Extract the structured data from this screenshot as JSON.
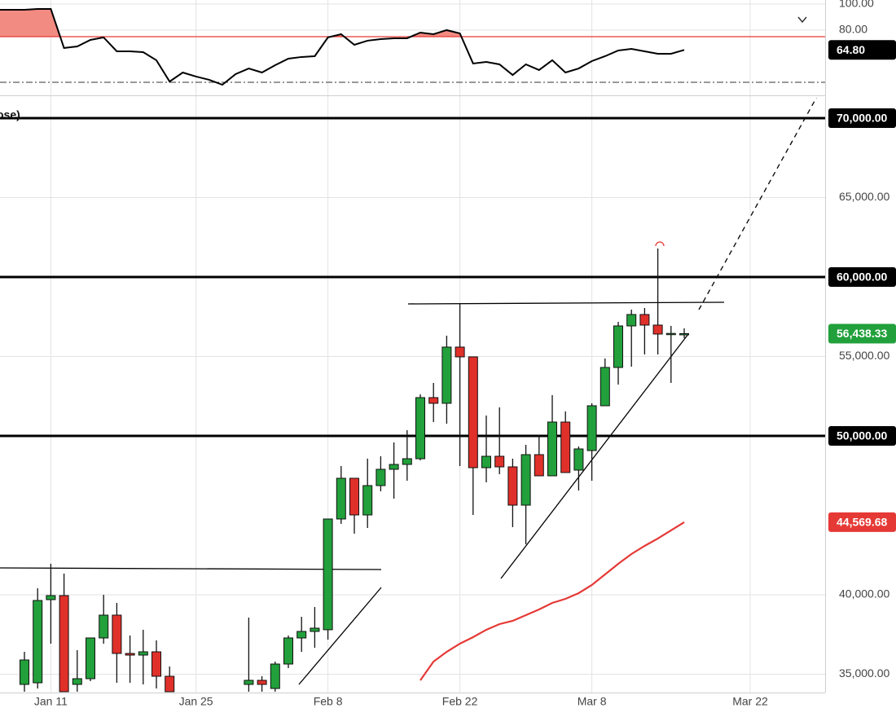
{
  "chart_data": [
    {
      "type": "line",
      "values": [
        95.6,
        96.2,
        96.2,
        66.3,
        67.5,
        72.5,
        74.4,
        63.75,
        63.75,
        63.1,
        56.9,
        40.6,
        47.5,
        44.4,
        41.9,
        38.1,
        46.25,
        50.6,
        47.5,
        53.1,
        58.1,
        59.4,
        60,
        74.4,
        76.9,
        68.75,
        71.9,
        73.1,
        73.75,
        73.75,
        78.1,
        76.9,
        80,
        77.5,
        54.4,
        55.6,
        53.75,
        45.6,
        53.75,
        49.4,
        56.9,
        47.5,
        50.6,
        56.25,
        60,
        64.4,
        65.6,
        63.75,
        61.9,
        61.9,
        64.8,
        null,
        null,
        null,
        null,
        null,
        null,
        null,
        null,
        null,
        null
      ],
      "color": "#000000",
      "ylim": [
        31.25,
        103.1
      ],
      "yticks": [
        {
          "value": 100,
          "label": "100.00"
        },
        {
          "value": 80,
          "label": "80.00"
        }
      ],
      "upper_band": 75,
      "lower_band": 40,
      "band_color": "#e53935",
      "fill_color": "#f28b82",
      "last_label": {
        "value": 64.8,
        "label": "64.80"
      }
    },
    {
      "type": "candlestick",
      "legend_text": "ose)",
      "categories": [
        null,
        null,
        "Jan 11",
        null,
        null,
        null,
        null,
        null,
        null,
        null,
        null,
        null,
        null,
        "Jan 25",
        null,
        null,
        null,
        null,
        null,
        null,
        null,
        null,
        null,
        "Feb 8",
        null,
        null,
        null,
        null,
        null,
        null,
        null,
        null,
        null,
        "Feb 22",
        null,
        null,
        null,
        null,
        null,
        null,
        null,
        null,
        null,
        "Mar 8",
        null,
        null,
        null,
        null,
        null,
        null,
        null,
        null,
        null,
        null,
        null,
        "Mar 22",
        null,
        null,
        null,
        null,
        null
      ],
      "open": [
        34359,
        34462,
        39694,
        39949,
        34360,
        34719,
        37283,
        38719,
        36308,
        36205,
        36410,
        34872,
        null,
        null,
        null,
        null,
        null,
        34359,
        34616,
        34103,
        35641,
        37283,
        37694,
        37800,
        44770,
        47334,
        45026,
        46872,
        47898,
        48205,
        48565,
        52411,
        52052,
        55590,
        54975,
        48000,
        48718,
        48052,
        45641,
        48821,
        47488,
        50872,
        47847,
        49077,
        51898,
        54308,
        56923,
        57641,
        56975,
        56411,
        56438,
        null,
        null,
        null,
        null,
        null,
        null,
        null,
        null,
        null,
        null
      ],
      "high": [
        36410,
        40410,
        41950,
        41334,
        36514,
        37283,
        40000,
        39488,
        37437,
        37796,
        37129,
        35487,
        null,
        null,
        null,
        null,
        null,
        38564,
        34873,
        35795,
        37437,
        38616,
        39231,
        44770,
        48103,
        47334,
        48565,
        48718,
        49590,
        50360,
        52616,
        53334,
        56308,
        58359,
        54975,
        51283,
        51795,
        48565,
        49436,
        50052,
        52565,
        51539,
        49334,
        52052,
        54872,
        57180,
        57949,
        58052,
        61795,
        56923,
        56770,
        null,
        null,
        null,
        null,
        null,
        null,
        null,
        null,
        null,
        null
      ],
      "low": [
        33900,
        34103,
        36923,
        33900,
        33900,
        34565,
        36923,
        34462,
        34462,
        34359,
        34103,
        33900,
        null,
        null,
        null,
        null,
        null,
        33900,
        33900,
        33900,
        35385,
        36410,
        36667,
        37180,
        44462,
        43847,
        44206,
        46513,
        46052,
        47180,
        48462,
        50872,
        50770,
        48103,
        45026,
        47078,
        47590,
        44257,
        43180,
        47488,
        47488,
        47693,
        46565,
        47180,
        51898,
        53231,
        54359,
        55128,
        55128,
        53334,
        56154,
        null,
        null,
        null,
        null,
        null,
        null,
        null,
        null,
        null,
        null
      ],
      "close": [
        35897,
        39641,
        39949,
        33900,
        34719,
        37283,
        38719,
        36308,
        36205,
        36410,
        34872,
        33900,
        null,
        null,
        null,
        null,
        null,
        34616,
        34359,
        35641,
        37283,
        37694,
        37898,
        44770,
        47334,
        45026,
        46872,
        47898,
        48205,
        48565,
        52411,
        52052,
        55590,
        54975,
        48000,
        48718,
        48052,
        45641,
        48821,
        47488,
        50872,
        47693,
        49180,
        51898,
        54308,
        56923,
        57641,
        56975,
        56411,
        56450,
        56438.33,
        null,
        null,
        null,
        null,
        null,
        null,
        null,
        null,
        null,
        null
      ],
      "up_color": "#22a03b",
      "down_color": "#e0302a",
      "moving_average": {
        "color": "#e53935",
        "values": [
          null,
          null,
          null,
          null,
          null,
          null,
          null,
          null,
          null,
          null,
          null,
          null,
          null,
          null,
          null,
          null,
          null,
          null,
          null,
          null,
          null,
          null,
          null,
          null,
          null,
          null,
          null,
          null,
          null,
          null,
          34616,
          35795,
          36410,
          36923,
          37334,
          37796,
          38154,
          38359,
          38719,
          39077,
          39488,
          39744,
          40103,
          40616,
          41282,
          41949,
          42564,
          43077,
          43539,
          44052,
          44569.68,
          null,
          null,
          null,
          null,
          null,
          null,
          null,
          null,
          null,
          null
        ]
      },
      "ylim": [
        33846,
        71282
      ],
      "yticks": [
        {
          "value": 35000,
          "label": "35,000.00"
        },
        {
          "value": 40000,
          "label": "40,000.00"
        },
        {
          "value": 55000,
          "label": "55,000.00"
        },
        {
          "value": 65000,
          "label": "65,000.00"
        }
      ],
      "grid": true,
      "levels": [
        {
          "value": 70000,
          "label": "70,000.00"
        },
        {
          "value": 60000,
          "label": "60,000.00"
        },
        {
          "value": 50000,
          "label": "50,000.00"
        }
      ],
      "level_color": "#000000",
      "price_labels": [
        {
          "value": 56438.33,
          "label": "56,438.33",
          "color": "#22a03b"
        },
        {
          "value": 44569.68,
          "label": "44,569.68",
          "color": "#e53935"
        }
      ]
    }
  ]
}
